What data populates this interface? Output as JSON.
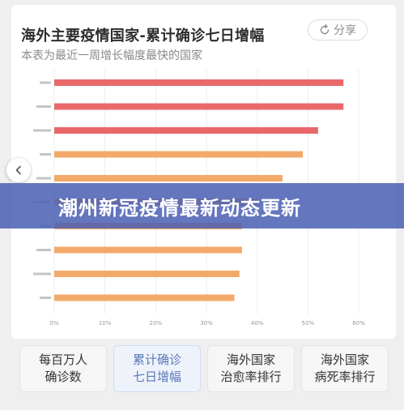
{
  "header": {
    "title": "海外主要疫情国家-累计确诊七日增幅",
    "subtitle": "本表为最近一周增长幅度最快的国家",
    "share_label": "分享"
  },
  "banner": {
    "text": "潮州新冠疫情最新动态更新"
  },
  "tabs": [
    {
      "line1": "每百万人",
      "line2": "确诊数",
      "active": false
    },
    {
      "line1": "累计确诊",
      "line2": "七日增幅",
      "active": true
    },
    {
      "line1": "海外国家",
      "line2": "治愈率排行",
      "active": false
    },
    {
      "line1": "海外国家",
      "line2": "病死率排行",
      "active": false
    }
  ],
  "colors": {
    "bar_red": "#e9686a",
    "bar_orange": "#f3a969",
    "accent": "#5a78b8"
  },
  "chart_data": {
    "type": "bar",
    "orientation": "horizontal",
    "categories": [
      "",
      "",
      "",
      "",
      "",
      "",
      "",
      "",
      "",
      ""
    ],
    "values": [
      57,
      57,
      52,
      49,
      45,
      40,
      37,
      37,
      36.5,
      35.5
    ],
    "xlim": [
      0,
      60
    ],
    "x_ticks": [
      "0%",
      "10%",
      "20%",
      "30%",
      "40%",
      "50%",
      "60%"
    ],
    "bar_colors": [
      "#e9686a",
      "#e9686a",
      "#e9686a",
      "#f3a969",
      "#f3a969",
      "#f3a969",
      "#f3a969",
      "#f3a969",
      "#f3a969",
      "#f3a969"
    ],
    "grid": true
  }
}
